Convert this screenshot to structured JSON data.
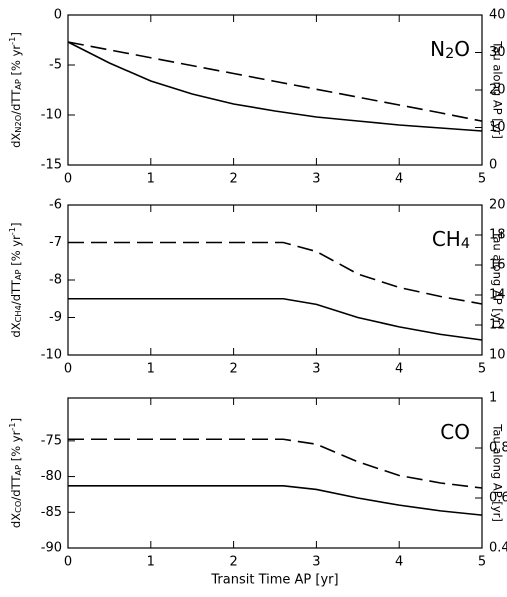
{
  "chart_data": [
    {
      "type": "line",
      "panel_label": [
        "N",
        "2",
        "O"
      ],
      "ylabel": [
        "dX",
        "N2O",
        "/dTT",
        "AP",
        " [% yr",
        "-1",
        "]"
      ],
      "y2label": "Tau along AP [yr]",
      "x": [
        0,
        0.5,
        1,
        1.5,
        2,
        2.5,
        3,
        3.5,
        4,
        4.5,
        5
      ],
      "xlim": [
        0,
        5
      ],
      "xticks": [
        0,
        1,
        2,
        3,
        4,
        5
      ],
      "ylim": [
        -15,
        0
      ],
      "yticks": [
        0,
        -5,
        -10,
        -15
      ],
      "y2lim": [
        0,
        40
      ],
      "y2ticks": [
        0,
        10,
        20,
        30,
        40
      ],
      "series": [
        {
          "color": "#000000",
          "linestyle": "solid",
          "values": [
            -2.7,
            -4.8,
            -6.6,
            -7.9,
            -8.9,
            -9.6,
            -10.2,
            -10.6,
            -11.0,
            -11.3,
            -11.6
          ]
        },
        {
          "color": "#000000",
          "linestyle": "dashed",
          "axis": "y2",
          "values": [
            32.8,
            30.7,
            28.6,
            26.5,
            24.4,
            22.3,
            20.2,
            18.1,
            16.0,
            13.9,
            11.7
          ]
        }
      ]
    },
    {
      "type": "line",
      "panel_label": [
        "CH",
        "4"
      ],
      "ylabel": [
        "dX",
        "CH4",
        "/dTT",
        "AP",
        " [% yr",
        "-1",
        "]"
      ],
      "y2label": "Tau along AP [yr]",
      "x": [
        0,
        0.5,
        1,
        1.5,
        2,
        2.5,
        2.6,
        3,
        3.5,
        4,
        4.5,
        5
      ],
      "xlim": [
        0,
        5
      ],
      "xticks": [
        0,
        1,
        2,
        3,
        4,
        5
      ],
      "ylim": [
        -10,
        -6
      ],
      "yticks": [
        -6,
        -7,
        -8,
        -9,
        -10
      ],
      "y2lim": [
        10,
        20
      ],
      "y2ticks": [
        10,
        12,
        14,
        16,
        18,
        20
      ],
      "series": [
        {
          "color": "#000000",
          "linestyle": "solid",
          "values": [
            -8.5,
            -8.5,
            -8.5,
            -8.5,
            -8.5,
            -8.5,
            -8.5,
            -8.65,
            -9.0,
            -9.25,
            -9.45,
            -9.6
          ]
        },
        {
          "color": "#000000",
          "linestyle": "dashed",
          "axis": "y2",
          "values": [
            17.5,
            17.5,
            17.5,
            17.5,
            17.5,
            17.5,
            17.5,
            16.9,
            15.4,
            14.5,
            13.9,
            13.4
          ]
        }
      ]
    },
    {
      "type": "line",
      "panel_label": [
        "CO"
      ],
      "ylabel": [
        "dX",
        "CO",
        "/dTT",
        "AP",
        " [% yr",
        "-1",
        "]"
      ],
      "y2label": "Tau along AP [yr]",
      "xlabel": "Transit Time AP [yr]",
      "x": [
        0,
        0.5,
        1,
        1.5,
        2,
        2.5,
        2.6,
        3,
        3.5,
        4,
        4.5,
        5
      ],
      "xlim": [
        0,
        5
      ],
      "xticks": [
        0,
        1,
        2,
        3,
        4,
        5
      ],
      "ylim": [
        -90,
        -69
      ],
      "yticks": [
        -75,
        -80,
        -85,
        -90
      ],
      "y2lim": [
        0.4,
        1
      ],
      "y2ticks": [
        0.4,
        0.6,
        0.8,
        1
      ],
      "series": [
        {
          "color": "#000000",
          "linestyle": "solid",
          "values": [
            -81.3,
            -81.3,
            -81.3,
            -81.3,
            -81.3,
            -81.3,
            -81.3,
            -81.8,
            -83.0,
            -84.0,
            -84.8,
            -85.4
          ]
        },
        {
          "color": "#000000",
          "linestyle": "dashed",
          "axis": "y2",
          "values": [
            0.835,
            0.835,
            0.835,
            0.835,
            0.835,
            0.835,
            0.835,
            0.815,
            0.745,
            0.69,
            0.66,
            0.64
          ]
        }
      ]
    }
  ]
}
